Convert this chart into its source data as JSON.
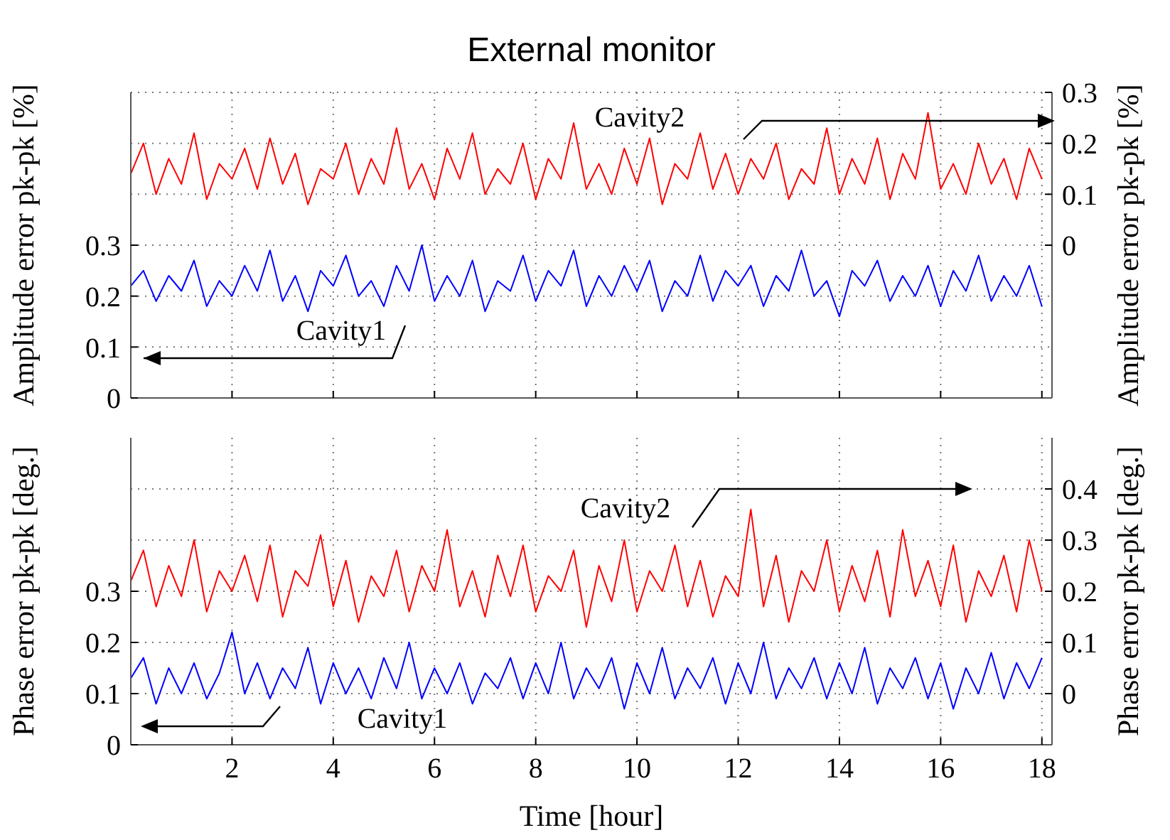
{
  "chart_data": [
    {
      "type": "line",
      "title": "External monitor",
      "ylabel": "Amplitude error pk-pk [%]",
      "y2label": "Amplitude error pk-pk [%]",
      "x": [
        0,
        0.25,
        0.5,
        0.75,
        1,
        1.25,
        1.5,
        1.75,
        2,
        2.25,
        2.5,
        2.75,
        3,
        3.25,
        3.5,
        3.75,
        4,
        4.25,
        4.5,
        4.75,
        5,
        5.25,
        5.5,
        5.75,
        6,
        6.25,
        6.5,
        6.75,
        7,
        7.25,
        7.5,
        7.75,
        8,
        8.25,
        8.5,
        8.75,
        9,
        9.25,
        9.5,
        9.75,
        10,
        10.25,
        10.5,
        10.75,
        11,
        11.25,
        11.5,
        11.75,
        12,
        12.25,
        12.5,
        12.75,
        13,
        13.25,
        13.5,
        13.75,
        14,
        14.25,
        14.5,
        14.75,
        15,
        15.25,
        15.5,
        15.75,
        16,
        16.25,
        16.5,
        16.75,
        17,
        17.25,
        17.5,
        17.75,
        18
      ],
      "series": [
        {
          "name": "Cavity1",
          "color": "#0000ff",
          "values": [
            0.22,
            0.25,
            0.19,
            0.24,
            0.21,
            0.27,
            0.18,
            0.23,
            0.2,
            0.26,
            0.21,
            0.29,
            0.19,
            0.24,
            0.17,
            0.25,
            0.22,
            0.28,
            0.2,
            0.23,
            0.18,
            0.26,
            0.21,
            0.3,
            0.19,
            0.24,
            0.2,
            0.27,
            0.17,
            0.23,
            0.21,
            0.28,
            0.19,
            0.25,
            0.22,
            0.29,
            0.18,
            0.24,
            0.2,
            0.26,
            0.21,
            0.27,
            0.17,
            0.23,
            0.2,
            0.28,
            0.19,
            0.25,
            0.22,
            0.26,
            0.18,
            0.24,
            0.21,
            0.29,
            0.2,
            0.23,
            0.16,
            0.25,
            0.22,
            0.27,
            0.19,
            0.24,
            0.2,
            0.26,
            0.18,
            0.25,
            0.21,
            0.28,
            0.19,
            0.24,
            0.2,
            0.26,
            0.18
          ]
        },
        {
          "name": "Cavity2",
          "color": "#ff0000",
          "axis": "y2",
          "values": [
            0.14,
            0.2,
            0.1,
            0.17,
            0.12,
            0.22,
            0.09,
            0.16,
            0.13,
            0.19,
            0.11,
            0.21,
            0.12,
            0.18,
            0.08,
            0.15,
            0.13,
            0.2,
            0.1,
            0.17,
            0.12,
            0.23,
            0.11,
            0.16,
            0.09,
            0.19,
            0.13,
            0.22,
            0.1,
            0.15,
            0.12,
            0.2,
            0.09,
            0.17,
            0.13,
            0.24,
            0.11,
            0.16,
            0.1,
            0.19,
            0.12,
            0.21,
            0.08,
            0.16,
            0.13,
            0.22,
            0.11,
            0.18,
            0.1,
            0.17,
            0.13,
            0.2,
            0.09,
            0.15,
            0.12,
            0.23,
            0.1,
            0.17,
            0.12,
            0.21,
            0.09,
            0.18,
            0.13,
            0.26,
            0.11,
            0.16,
            0.1,
            0.2,
            0.12,
            0.17,
            0.09,
            0.19,
            0.13
          ]
        }
      ],
      "xlim": [
        0,
        18.2
      ],
      "xticks": [
        2,
        4,
        6,
        8,
        10,
        12,
        14,
        16,
        18
      ],
      "ylim": [
        0,
        0.6
      ],
      "yticks": [
        0,
        0.1,
        0.2,
        0.3
      ],
      "y2lim": [
        -0.3,
        0.3
      ],
      "y2ticks": [
        0,
        0.1,
        0.2,
        0.3
      ],
      "grid": true,
      "legend": false,
      "marker": "none",
      "line_style": "solid",
      "tick_labels": "y"
    },
    {
      "type": "line",
      "xlabel": "Time [hour]",
      "ylabel": "Phase error pk-pk [deg.]",
      "y2label": "Phase error pk-pk [deg.]",
      "x": [
        0,
        0.25,
        0.5,
        0.75,
        1,
        1.25,
        1.5,
        1.75,
        2,
        2.25,
        2.5,
        2.75,
        3,
        3.25,
        3.5,
        3.75,
        4,
        4.25,
        4.5,
        4.75,
        5,
        5.25,
        5.5,
        5.75,
        6,
        6.25,
        6.5,
        6.75,
        7,
        7.25,
        7.5,
        7.75,
        8,
        8.25,
        8.5,
        8.75,
        9,
        9.25,
        9.5,
        9.75,
        10,
        10.25,
        10.5,
        10.75,
        11,
        11.25,
        11.5,
        11.75,
        12,
        12.25,
        12.5,
        12.75,
        13,
        13.25,
        13.5,
        13.75,
        14,
        14.25,
        14.5,
        14.75,
        15,
        15.25,
        15.5,
        15.75,
        16,
        16.25,
        16.5,
        16.75,
        17,
        17.25,
        17.5,
        17.75,
        18
      ],
      "series": [
        {
          "name": "Cavity1",
          "color": "#0000ff",
          "values": [
            0.13,
            0.17,
            0.08,
            0.15,
            0.1,
            0.16,
            0.09,
            0.14,
            0.22,
            0.1,
            0.16,
            0.09,
            0.15,
            0.11,
            0.19,
            0.08,
            0.16,
            0.1,
            0.15,
            0.09,
            0.17,
            0.11,
            0.2,
            0.09,
            0.15,
            0.1,
            0.16,
            0.08,
            0.14,
            0.11,
            0.17,
            0.09,
            0.16,
            0.1,
            0.2,
            0.09,
            0.15,
            0.11,
            0.17,
            0.07,
            0.16,
            0.1,
            0.19,
            0.09,
            0.15,
            0.11,
            0.17,
            0.08,
            0.16,
            0.1,
            0.2,
            0.09,
            0.15,
            0.11,
            0.17,
            0.09,
            0.16,
            0.1,
            0.19,
            0.08,
            0.15,
            0.11,
            0.17,
            0.09,
            0.16,
            0.07,
            0.15,
            0.1,
            0.18,
            0.09,
            0.16,
            0.11,
            0.17
          ]
        },
        {
          "name": "Cavity2",
          "color": "#ff0000",
          "axis": "y2",
          "values": [
            0.22,
            0.28,
            0.17,
            0.25,
            0.19,
            0.3,
            0.16,
            0.24,
            0.2,
            0.27,
            0.18,
            0.29,
            0.15,
            0.24,
            0.21,
            0.31,
            0.17,
            0.26,
            0.14,
            0.23,
            0.19,
            0.28,
            0.16,
            0.25,
            0.2,
            0.32,
            0.17,
            0.24,
            0.15,
            0.27,
            0.19,
            0.29,
            0.16,
            0.23,
            0.2,
            0.28,
            0.13,
            0.25,
            0.18,
            0.3,
            0.16,
            0.24,
            0.2,
            0.29,
            0.17,
            0.26,
            0.15,
            0.23,
            0.19,
            0.36,
            0.17,
            0.27,
            0.14,
            0.24,
            0.2,
            0.3,
            0.16,
            0.25,
            0.18,
            0.28,
            0.15,
            0.32,
            0.19,
            0.26,
            0.17,
            0.29,
            0.14,
            0.24,
            0.19,
            0.27,
            0.16,
            0.3,
            0.2
          ]
        }
      ],
      "xlim": [
        0,
        18.2
      ],
      "xticks": [
        2,
        4,
        6,
        8,
        10,
        12,
        14,
        16,
        18
      ],
      "ylim": [
        0,
        0.6
      ],
      "yticks": [
        0,
        0.1,
        0.2,
        0.3
      ],
      "y2lim": [
        -0.1,
        0.5
      ],
      "y2ticks": [
        0,
        0.1,
        0.2,
        0.3,
        0.4
      ],
      "grid": true,
      "legend": false,
      "marker": "none",
      "line_style": "solid"
    }
  ]
}
